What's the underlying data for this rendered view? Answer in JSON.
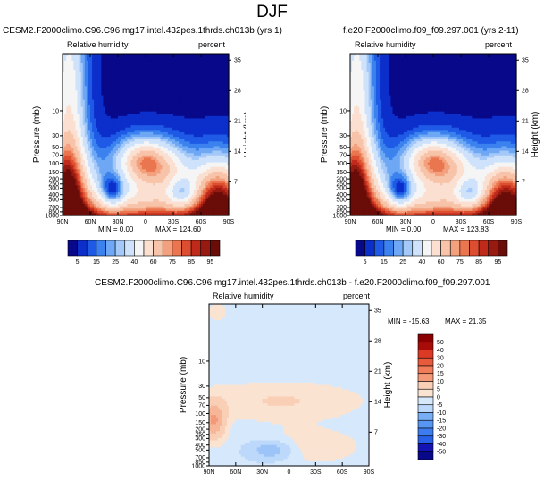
{
  "page_title": "DJF",
  "colors": {
    "rh_levels": [
      "#08088a",
      "#0c2fcb",
      "#1e5ae6",
      "#3c82ef",
      "#6ea8f5",
      "#a4c8f8",
      "#cfe2fb",
      "#f5f5f5",
      "#fbe0d2",
      "#f7c3a9",
      "#f3a07e",
      "#ea7650",
      "#dc4e2f",
      "#c02a1a",
      "#961a10",
      "#6a0c08"
    ],
    "diff_levels": [
      "#08088a",
      "#1414b4",
      "#1e3ed8",
      "#2860e8",
      "#3c7cf0",
      "#5896f4",
      "#78aef6",
      "#9cc4f8",
      "#bcd8fa",
      "#d6e8fb",
      "#fbe3d2",
      "#f9cfb6",
      "#f7b697",
      "#f49a78",
      "#f07c5a",
      "#e85a3c",
      "#dc3a24",
      "#c42014",
      "#a80c08",
      "#8a0000"
    ]
  },
  "chart_data": [
    {
      "id": "model",
      "type": "heatmap",
      "title": "CESM2.F2000climo.C96.C96.mg17.intel.432pes.1thrds.ch013b (yrs 1)",
      "left_label": "Relative humidity",
      "right_label": "percent",
      "ylabel": "Pressure (mb)",
      "ylabel_right": "Height (km)",
      "xticks": [
        "90N",
        "60N",
        "30N",
        "0",
        "30S",
        "60S",
        "90S"
      ],
      "yticks": [
        "10",
        "30",
        "50",
        "70",
        "100",
        "150",
        "200",
        "250",
        "300",
        "400",
        "500",
        "700",
        "850",
        "1000"
      ],
      "height_ticks": [
        "35",
        "28",
        "21",
        "14",
        "7"
      ],
      "min_label": "MIN =   0.00",
      "max_label": "MAX = 124.60",
      "min": 0.0,
      "max": 124.6
    },
    {
      "id": "obs",
      "type": "heatmap",
      "title": "f.e20.F2000climo.f09_f09.297.001 (yrs 2-11)",
      "left_label": "Relative humidity",
      "right_label": "percent",
      "ylabel": "Pressure (mb)",
      "ylabel_right": "Height (km)",
      "xticks": [
        "90N",
        "60N",
        "30N",
        "0",
        "30S",
        "60S",
        "90S"
      ],
      "yticks": [
        "10",
        "30",
        "50",
        "70",
        "100",
        "150",
        "200",
        "250",
        "300",
        "400",
        "500",
        "700",
        "850",
        "1000"
      ],
      "height_ticks": [
        "35",
        "28",
        "21",
        "14",
        "7"
      ],
      "min_label": "MIN =   0.00",
      "max_label": "MAX = 123.83",
      "min": 0.0,
      "max": 123.83
    },
    {
      "id": "diff",
      "type": "heatmap",
      "title": "CESM2.F2000climo.C96.C96.mg17.intel.432pes.1thrds.ch013b - f.e20.F2000climo.f09_f09.297.001",
      "left_label": "Relative humidity",
      "right_label": "percent",
      "ylabel": "Pressure (mb)",
      "ylabel_right": "Height (km)",
      "xticks": [
        "90N",
        "60N",
        "30N",
        "0",
        "30S",
        "60S",
        "90S"
      ],
      "yticks": [
        "10",
        "30",
        "50",
        "70",
        "100",
        "150",
        "200",
        "250",
        "300",
        "400",
        "500",
        "700",
        "850",
        "1000"
      ],
      "height_ticks": [
        "35",
        "28",
        "21",
        "14",
        "7"
      ],
      "min_label": "MIN = -15.63",
      "max_label": "MAX =  21.35",
      "min": -15.63,
      "max": 21.35
    }
  ],
  "colorbar_rh": {
    "labels": [
      "5",
      "15",
      "25",
      "40",
      "60",
      "75",
      "85",
      "95"
    ]
  },
  "colorbar_diff": {
    "labels": [
      "50",
      "40",
      "30",
      "20",
      "15",
      "10",
      "5",
      "0",
      "-5",
      "-10",
      "-15",
      "-20",
      "-30",
      "-40",
      "-50"
    ]
  }
}
